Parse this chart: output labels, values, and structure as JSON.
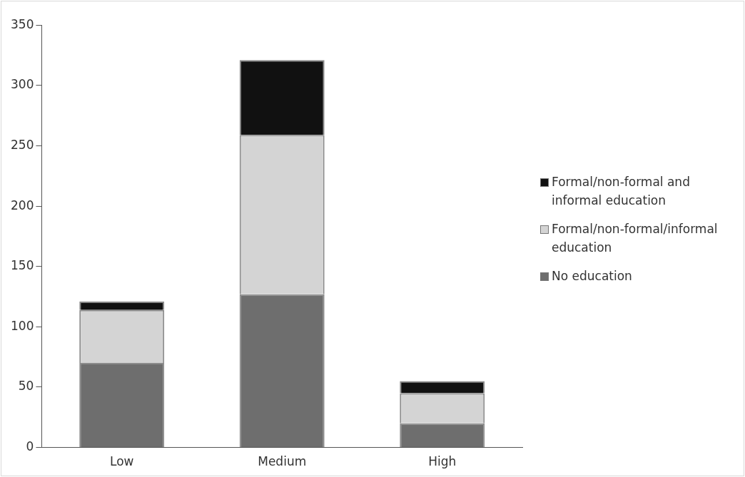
{
  "chart_data": {
    "type": "bar",
    "stacked": true,
    "categories": [
      "Low",
      "Medium",
      "High"
    ],
    "series": [
      {
        "name": "No education",
        "color": "#6e6e6e",
        "values": [
          70,
          127,
          20
        ]
      },
      {
        "name": "Formal/non-formal/informal education",
        "color": "#d4d4d4",
        "values": [
          44,
          132,
          25
        ]
      },
      {
        "name": "Formal/non-formal and informal education",
        "color": "#111111",
        "values": [
          7,
          62,
          10
        ]
      }
    ],
    "ylim": [
      0,
      350
    ],
    "yticks": [
      0,
      50,
      100,
      150,
      200,
      250,
      300,
      350
    ],
    "grid": false,
    "legend": "right"
  }
}
